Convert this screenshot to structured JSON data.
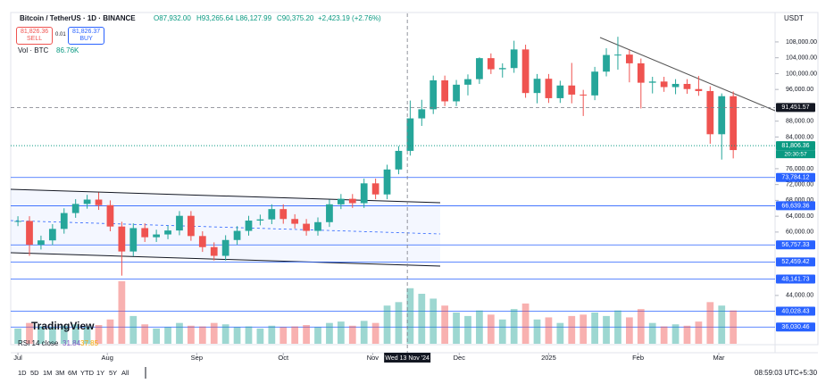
{
  "header": {
    "symbol": "Bitcoin / TetherUS · 1D · BINANCE",
    "open": "O87,932.00",
    "high": "H93,265.64",
    "low": "L86,127.99",
    "close": "C90,375.20",
    "change": "+2,423.19 (+2.76%)",
    "sell_price": "81,826.36",
    "sell": "SELL",
    "spread": "0.01",
    "buy_price": "81,826.37",
    "buy": "BUY",
    "volume_label": "Vol · BTC",
    "volume_value": "86.76K",
    "currency": "USDT"
  },
  "chart_data": {
    "type": "candlestick",
    "x": [
      0,
      4,
      8,
      12,
      16,
      20,
      24,
      28,
      32,
      36,
      40,
      44,
      48,
      52,
      56,
      60,
      64,
      68,
      72,
      76,
      80,
      84,
      88,
      92,
      96,
      100,
      104,
      108,
      112,
      116,
      120,
      124,
      128,
      132,
      136,
      140,
      144,
      148,
      152,
      156,
      160,
      164,
      168,
      172,
      176,
      180,
      184,
      188,
      192,
      196,
      200,
      204,
      208,
      212,
      216,
      220,
      224,
      228,
      232,
      236,
      240,
      244,
      248
    ],
    "open": [
      62700,
      62800,
      56800,
      57900,
      60800,
      64800,
      67100,
      68200,
      66800,
      61400,
      55100,
      61000,
      58700,
      59400,
      60400,
      64100,
      59000,
      56200,
      54000,
      58000,
      60300,
      62900,
      63200,
      65800,
      63300,
      62100,
      60300,
      62500,
      67000,
      68400,
      67300,
      72300,
      69500,
      75800,
      80500,
      88700,
      91000,
      98300,
      93000,
      97200,
      98600,
      103900,
      101100,
      101400,
      106100,
      95100,
      98700,
      93800,
      97000,
      94700,
      94500,
      100500,
      104700,
      104800,
      102600,
      97700,
      98000,
      96600,
      97400,
      96100,
      95600,
      84700,
      94300
    ],
    "high": [
      64000,
      64000,
      59100,
      62000,
      66000,
      68300,
      69400,
      70000,
      68000,
      62600,
      62200,
      62200,
      60600,
      61600,
      65300,
      65300,
      60200,
      57400,
      59200,
      61500,
      64100,
      64400,
      67000,
      67000,
      64500,
      63300,
      63700,
      68200,
      69600,
      69600,
      73500,
      73500,
      77000,
      81700,
      93200,
      93400,
      99500,
      99500,
      98400,
      99800,
      104100,
      105100,
      102600,
      108300,
      107300,
      99900,
      99900,
      98200,
      102700,
      95900,
      101700,
      106400,
      109300,
      106000,
      103800,
      99200,
      99200,
      98600,
      98600,
      99400,
      96800,
      95000,
      95500
    ],
    "low": [
      61500,
      54000,
      55600,
      56700,
      59600,
      63600,
      65900,
      65600,
      60200,
      49000,
      53900,
      57500,
      57500,
      58200,
      59200,
      57800,
      55000,
      52800,
      52800,
      56800,
      59100,
      61700,
      62000,
      62100,
      60900,
      59100,
      59100,
      61300,
      65800,
      66100,
      66100,
      68300,
      68300,
      74600,
      79300,
      86800,
      89800,
      91800,
      91800,
      94500,
      97400,
      99900,
      99000,
      100200,
      93900,
      92500,
      92600,
      92600,
      92500,
      89300,
      93300,
      99300,
      101000,
      97800,
      91200,
      95000,
      95400,
      94800,
      94900,
      94400,
      82300,
      78300,
      78600
    ],
    "close": [
      62800,
      56800,
      57900,
      60800,
      64800,
      67100,
      68200,
      66800,
      61400,
      55100,
      61000,
      58700,
      59400,
      60400,
      64100,
      59000,
      56200,
      54000,
      58000,
      60300,
      62900,
      63200,
      65800,
      63300,
      62100,
      60300,
      62500,
      67000,
      68400,
      67300,
      72300,
      69500,
      75800,
      80500,
      88700,
      91000,
      98300,
      93000,
      97200,
      98600,
      103900,
      101100,
      101400,
      106100,
      95100,
      98700,
      93800,
      97000,
      94700,
      94500,
      100500,
      104700,
      104800,
      102600,
      97700,
      98000,
      96600,
      97400,
      96100,
      95600,
      84700,
      94300,
      80700
    ],
    "volume": [
      22000,
      30000,
      25000,
      24000,
      26000,
      28000,
      25000,
      27000,
      35000,
      90000,
      40000,
      28000,
      22000,
      24000,
      30000,
      26000,
      25000,
      30000,
      28000,
      24000,
      25000,
      22000,
      26000,
      24000,
      25000,
      27000,
      24000,
      30000,
      32000,
      26000,
      33000,
      30000,
      55000,
      60000,
      80000,
      72000,
      65000,
      55000,
      45000,
      40000,
      48000,
      42000,
      35000,
      50000,
      58000,
      35000,
      38000,
      30000,
      40000,
      42000,
      45000,
      40000,
      48000,
      38000,
      50000,
      30000,
      25000,
      28000,
      26000,
      32000,
      60000,
      55000,
      48000
    ],
    "up_color": "#26a69a",
    "down_color": "#ef5350",
    "level_color": "#2962ff",
    "xlim": [
      -2.5,
      262.5
    ],
    "ylim": [
      31800,
      115200
    ],
    "xticks": [
      {
        "value": 0,
        "label": "Jul"
      },
      {
        "value": 31,
        "label": "Aug"
      },
      {
        "value": 62,
        "label": "Sep"
      },
      {
        "value": 92,
        "label": "Oct"
      },
      {
        "value": 123,
        "label": "Nov"
      },
      {
        "value": 153,
        "label": "Dec"
      },
      {
        "value": 184,
        "label": "2025"
      },
      {
        "value": 215,
        "label": "Feb"
      },
      {
        "value": 243,
        "label": "Mar"
      }
    ],
    "yticks": [
      {
        "value": 108000,
        "label": "108,000.00"
      },
      {
        "value": 104000,
        "label": "104,000.00"
      },
      {
        "value": 100000,
        "label": "100,000.00"
      },
      {
        "value": 96000,
        "label": "96,000.00"
      },
      {
        "value": 88000,
        "label": "88,000.00"
      },
      {
        "value": 84000,
        "label": "84,000.00"
      },
      {
        "value": 76000,
        "label": "76,000.00"
      },
      {
        "value": 72000,
        "label": "72,000.00"
      },
      {
        "value": 68000,
        "label": "68,000.00"
      },
      {
        "value": 64000,
        "label": "64,000.00"
      },
      {
        "value": 60000,
        "label": "60,000.00"
      },
      {
        "value": 44000,
        "label": "44,000.00"
      }
    ],
    "levels": [
      {
        "value": 73784.12,
        "label": "73,784.12"
      },
      {
        "value": 66639.36,
        "label": "66,639.36"
      },
      {
        "value": 56757.33,
        "label": "56,757.33"
      },
      {
        "value": 52459.42,
        "label": "52,459.42"
      },
      {
        "value": 48141.73,
        "label": "48,141.73"
      },
      {
        "value": 40028.43,
        "label": "40,028.43"
      },
      {
        "value": 36030.46,
        "label": "36,030.46"
      }
    ],
    "last_price": {
      "value": 81806.36,
      "label": "81,806.36"
    },
    "countdown": "20:30:57",
    "crosshair_price": {
      "value": 91451.57,
      "label": "91,451.57"
    },
    "crosshair_x": {
      "value": 135,
      "label": "Wed 13 Nov '24"
    }
  },
  "rsi": {
    "label": "RSI 14 close",
    "value": "31.84",
    "signal": "37.85"
  },
  "logo": "TradingView",
  "timeframes": [
    "1D",
    "5D",
    "1M",
    "3M",
    "6M",
    "YTD",
    "1Y",
    "5Y",
    "All"
  ],
  "clock": "08:59:03 UTC+5:30"
}
